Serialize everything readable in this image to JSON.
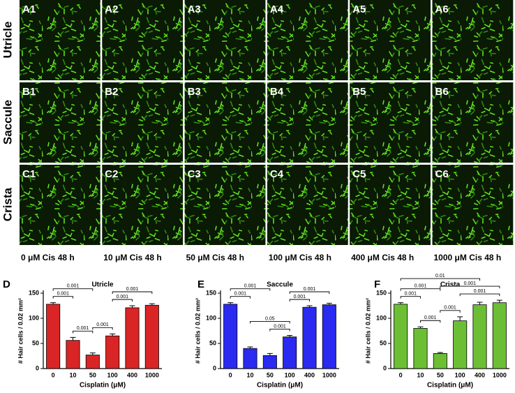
{
  "figure": {
    "rows": [
      "Utricle",
      "Saccule",
      "Crista"
    ],
    "panels": [
      [
        "A1",
        "A2",
        "A3",
        "A4",
        "A5",
        "A6"
      ],
      [
        "B1",
        "B2",
        "B3",
        "B4",
        "B5",
        "B6"
      ],
      [
        "C1",
        "C2",
        "C3",
        "C4",
        "C5",
        "C6"
      ]
    ],
    "columns": [
      "0 μM Cis 48 h",
      "10 μM Cis 48 h",
      "50 μM Cis 48 h",
      "100 μM Cis 48 h",
      "400 μM Cis 48 h",
      "1000 μM Cis 48 h"
    ]
  },
  "chart_data": [
    {
      "type": "bar",
      "panel": "D",
      "title": "Utricle",
      "y_label": "# Hair cells / 0.02 mm²",
      "x_label": "Cisplatin (μM)",
      "categories": [
        "0",
        "10",
        "50",
        "100",
        "400",
        "1000"
      ],
      "values": [
        128,
        56,
        27,
        65,
        121,
        126
      ],
      "errors": [
        3,
        6,
        4,
        4,
        4,
        3
      ],
      "color": "#d92525",
      "ylim": [
        0,
        150
      ],
      "yticks": [
        0,
        50,
        100,
        150
      ],
      "comparisons": [
        {
          "between": [
            "0",
            "10"
          ],
          "label": "0.001"
        },
        {
          "between": [
            "0",
            "50"
          ],
          "label": "0.001"
        },
        {
          "between": [
            "10",
            "50"
          ],
          "label": "0.001"
        },
        {
          "between": [
            "50",
            "100"
          ],
          "label": "0.001"
        },
        {
          "between": [
            "100",
            "400"
          ],
          "label": "0.001"
        },
        {
          "between": [
            "100",
            "1000"
          ],
          "label": "0.001"
        }
      ]
    },
    {
      "type": "bar",
      "panel": "E",
      "title": "Saccule",
      "y_label": "# Hair cells / 0.02 mm²",
      "x_label": "Cisplatin (μM)",
      "categories": [
        "0",
        "10",
        "50",
        "100",
        "400",
        "1000"
      ],
      "values": [
        128,
        40,
        26,
        63,
        122,
        127
      ],
      "errors": [
        3,
        3,
        4,
        3,
        3,
        3
      ],
      "color": "#2a2af0",
      "ylim": [
        0,
        150
      ],
      "yticks": [
        0,
        50,
        100,
        150
      ],
      "comparisons": [
        {
          "between": [
            "0",
            "10"
          ],
          "label": "0.001"
        },
        {
          "between": [
            "0",
            "50"
          ],
          "label": "0.001"
        },
        {
          "between": [
            "50",
            "100"
          ],
          "label": "0.001"
        },
        {
          "between": [
            "10",
            "100"
          ],
          "label": "0.05"
        },
        {
          "between": [
            "100",
            "400"
          ],
          "label": "0.001"
        },
        {
          "between": [
            "100",
            "1000"
          ],
          "label": "0.001"
        }
      ]
    },
    {
      "type": "bar",
      "panel": "F",
      "title": "Crista",
      "y_label": "# Hair cells / 0.02 mm²",
      "x_label": "Cisplatin (μM)",
      "categories": [
        "0",
        "10",
        "50",
        "100",
        "400",
        "1000"
      ],
      "values": [
        128,
        80,
        30,
        95,
        127,
        131
      ],
      "errors": [
        3,
        3,
        2,
        8,
        5,
        5
      ],
      "color": "#6cbf35",
      "ylim": [
        0,
        150
      ],
      "yticks": [
        0,
        50,
        100,
        150
      ],
      "comparisons": [
        {
          "between": [
            "0",
            "10"
          ],
          "label": "0.001"
        },
        {
          "between": [
            "10",
            "50"
          ],
          "label": "0.001"
        },
        {
          "between": [
            "50",
            "100"
          ],
          "label": "0.001"
        },
        {
          "between": [
            "100",
            "1000"
          ],
          "label": "0.001"
        },
        {
          "between": [
            "0",
            "50"
          ],
          "label": "0.001"
        },
        {
          "between": [
            "50",
            "1000"
          ],
          "label": "0.001"
        },
        {
          "between": [
            "0",
            "400"
          ],
          "label": "0.01"
        }
      ]
    }
  ]
}
